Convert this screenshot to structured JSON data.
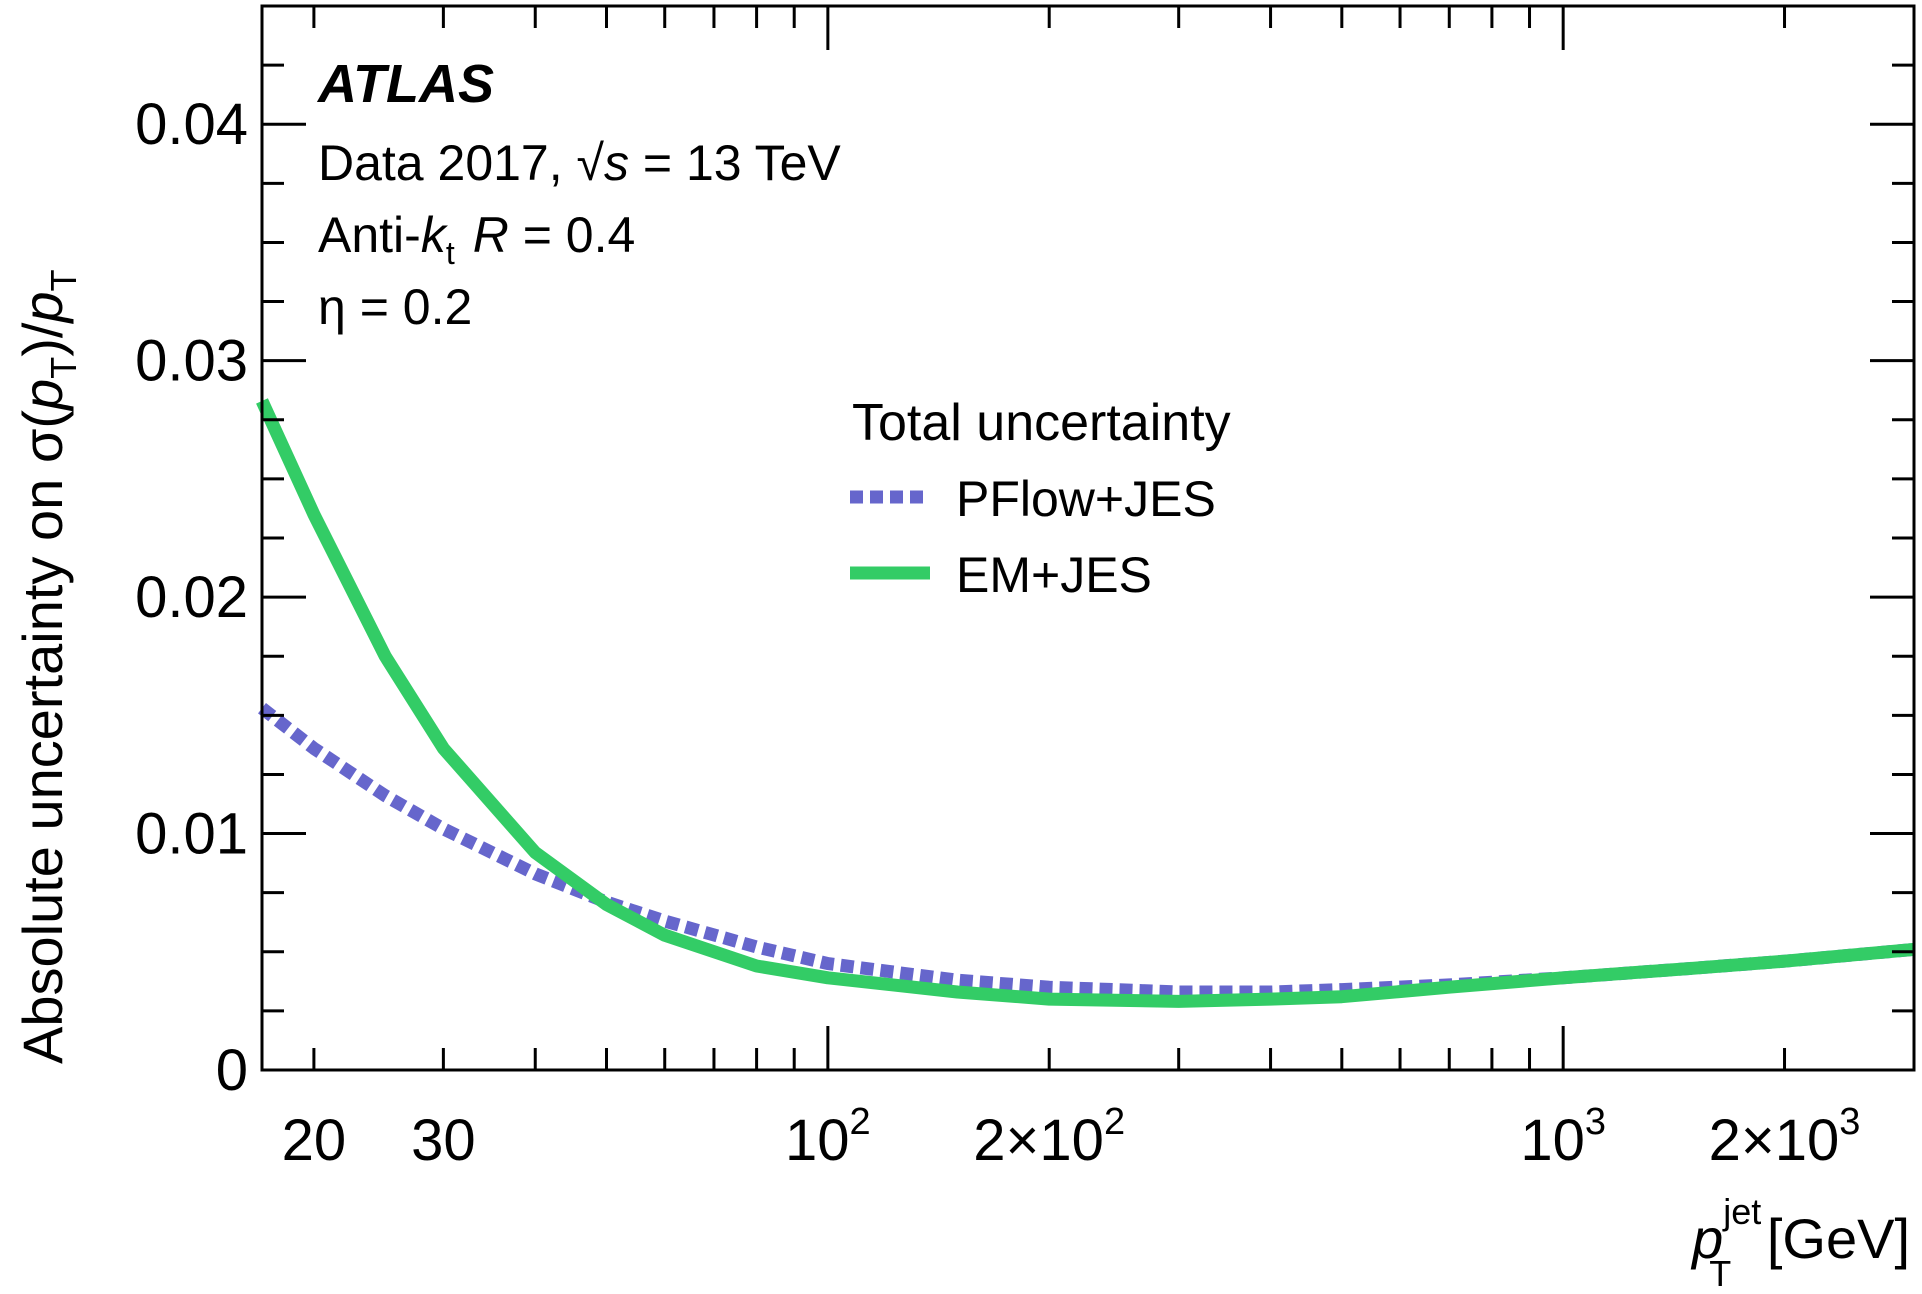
{
  "chart_data": {
    "type": "line",
    "title": "",
    "experiment": "ATLAS",
    "info_lines": {
      "data_prefix": "Data 2017, ",
      "sqrt": "√",
      "s": "s",
      "energy": " = 13 TeV",
      "anti": "Anti-",
      "k": "k",
      "t_sub": "t",
      "R": "R",
      "R_value": " = 0.4",
      "eta": "η = 0.2"
    },
    "xlabel": {
      "p": "p",
      "sup": "jet",
      "sub": "T",
      "unit": " [GeV]"
    },
    "ylabel": {
      "prefix": "Absolute uncertainty on σ(",
      "p": "p",
      "sub": "T",
      "mid": ")/",
      "p2": "p",
      "sub2": "T"
    },
    "x_scale": "log",
    "xlim": [
      17,
      3000
    ],
    "ylim": [
      0,
      0.045
    ],
    "y_ticks": [
      {
        "value": 0,
        "label": "0"
      },
      {
        "value": 0.01,
        "label": "0.01"
      },
      {
        "value": 0.02,
        "label": "0.02"
      },
      {
        "value": 0.03,
        "label": "0.03"
      },
      {
        "value": 0.04,
        "label": "0.04"
      }
    ],
    "x_ticks": [
      {
        "value": 20,
        "label": "20"
      },
      {
        "value": 30,
        "label": "30"
      },
      {
        "value": 100,
        "base": "10",
        "exp": "2"
      },
      {
        "value": 200,
        "base": "2×10",
        "exp": "2"
      },
      {
        "value": 1000,
        "base": "10",
        "exp": "3"
      },
      {
        "value": 2000,
        "base": "2×10",
        "exp": "3"
      }
    ],
    "legend_title": "Total uncertainty",
    "legend_placement": "center-right",
    "series": [
      {
        "name": "PFlow+JES",
        "color": "#6666cc",
        "style": "dotted",
        "x": [
          17,
          20,
          25,
          30,
          40,
          50,
          60,
          80,
          100,
          150,
          200,
          300,
          400,
          500,
          700,
          1000,
          1500,
          2000,
          3000
        ],
        "y": [
          0.0153,
          0.0136,
          0.0116,
          0.0102,
          0.0083,
          0.0071,
          0.0063,
          0.0052,
          0.0045,
          0.0038,
          0.0035,
          0.0033,
          0.0033,
          0.0034,
          0.0036,
          0.0039,
          0.0043,
          0.0046,
          0.0051
        ]
      },
      {
        "name": "EM+JES",
        "color": "#33cc66",
        "style": "solid",
        "x": [
          17,
          20,
          25,
          30,
          40,
          50,
          60,
          80,
          100,
          150,
          200,
          300,
          400,
          500,
          700,
          1000,
          1500,
          2000,
          3000
        ],
        "y": [
          0.0283,
          0.0235,
          0.0175,
          0.0136,
          0.0092,
          0.007,
          0.0057,
          0.0044,
          0.0039,
          0.0033,
          0.003,
          0.0029,
          0.003,
          0.0031,
          0.0035,
          0.0039,
          0.0043,
          0.0046,
          0.0051
        ]
      }
    ]
  }
}
